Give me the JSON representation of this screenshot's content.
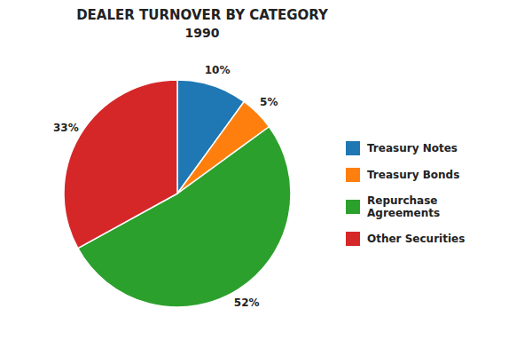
{
  "chart_data": {
    "type": "pie",
    "title": "DEALER TURNOVER BY CATEGORY",
    "subtitle": "1990",
    "categories": [
      "Treasury Notes",
      "Treasury Bonds",
      "Repurchase\nAgreements",
      "Other Securities"
    ],
    "values": [
      10,
      5,
      52,
      33
    ],
    "value_labels": [
      "10%",
      "5%",
      "52%",
      "33%"
    ],
    "data_labels": true,
    "legend": "right"
  }
}
